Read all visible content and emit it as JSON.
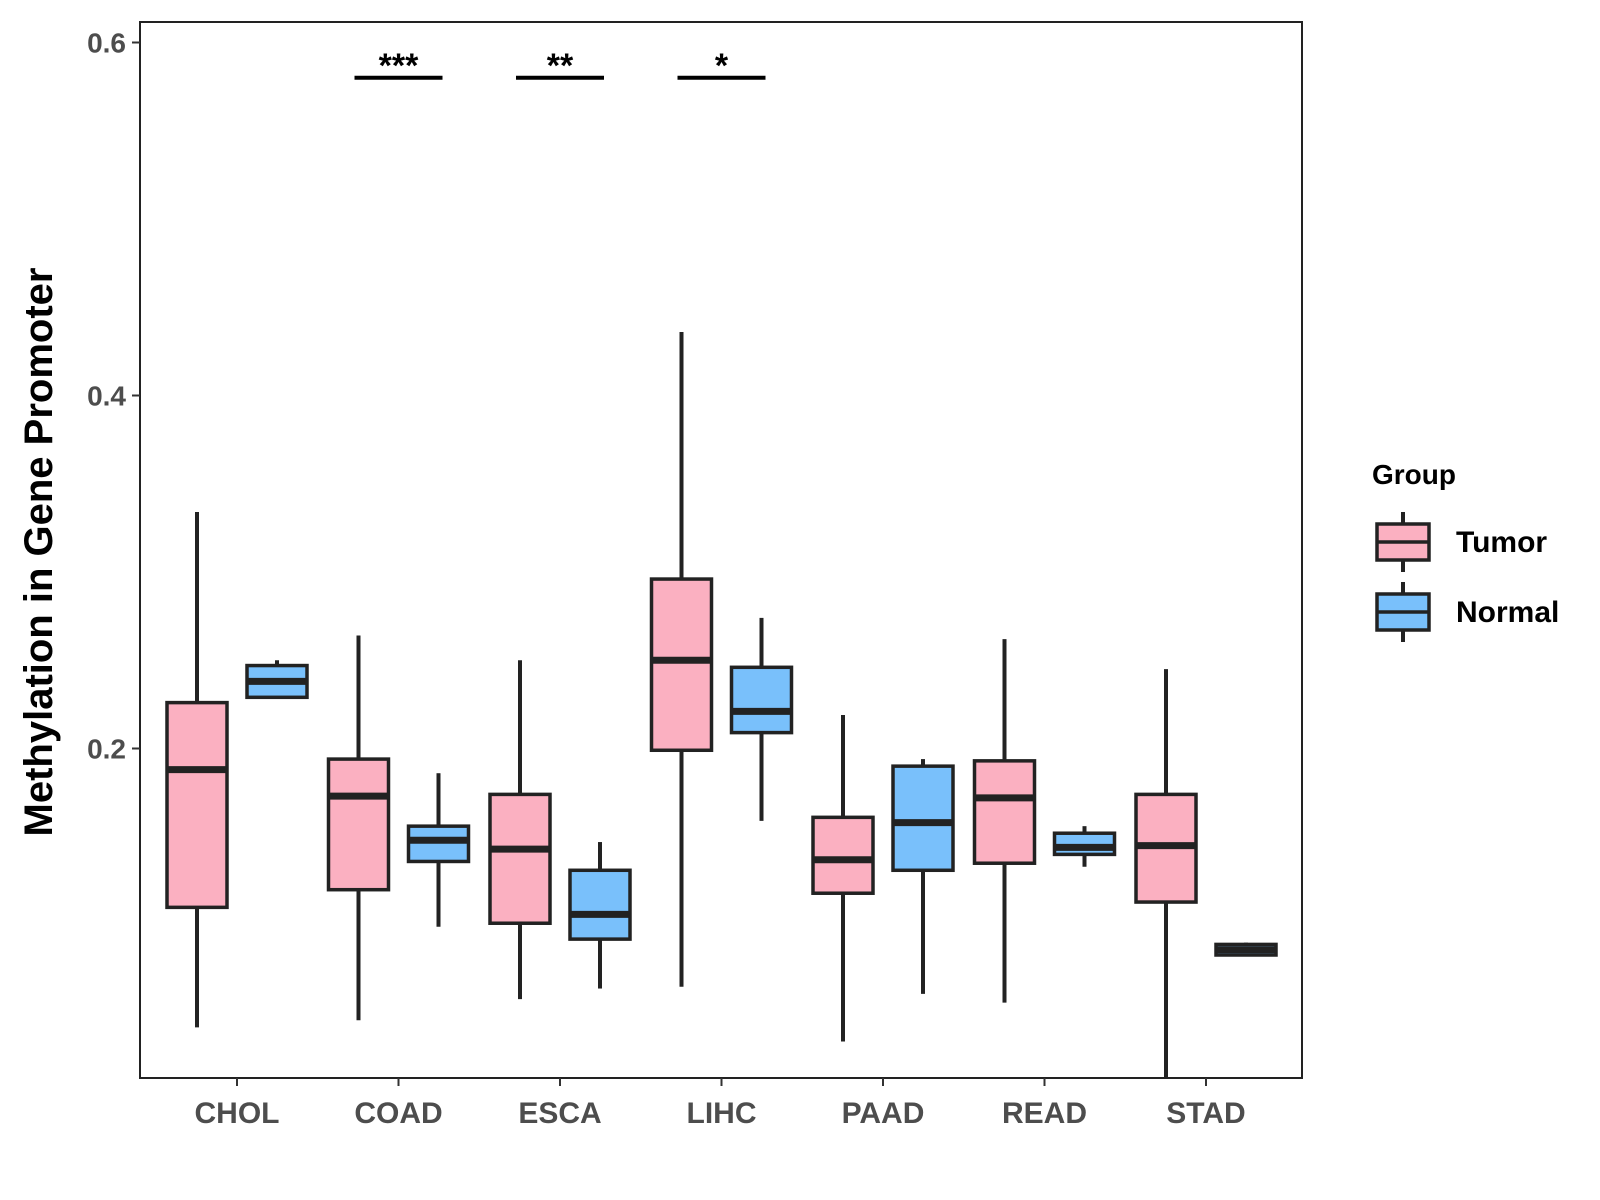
{
  "chart_data": {
    "type": "boxplot",
    "title": "",
    "xlabel": "",
    "ylabel": "Methylation in Gene Promoter",
    "ylim": [
      0.0,
      0.6
    ],
    "yticks": [
      "0.2",
      "0.4",
      "0.6"
    ],
    "categories": [
      "CHOL",
      "COAD",
      "ESCA",
      "LIHC",
      "PAAD",
      "READ",
      "STAD"
    ],
    "legend": {
      "title": "Group",
      "placement": "right",
      "items": [
        {
          "name": "Tumor",
          "color": "#FBB0C1"
        },
        {
          "name": "Normal",
          "color": "#79C0FB"
        }
      ]
    },
    "series": [
      {
        "name": "Tumor",
        "color": "#FBB0C1",
        "boxes": [
          {
            "category": "CHOL",
            "min": 0.042,
            "q1": 0.11,
            "median": 0.188,
            "q3": 0.226,
            "max": 0.334
          },
          {
            "category": "COAD",
            "min": 0.046,
            "q1": 0.12,
            "median": 0.173,
            "q3": 0.194,
            "max": 0.264
          },
          {
            "category": "ESCA",
            "min": 0.058,
            "q1": 0.101,
            "median": 0.143,
            "q3": 0.174,
            "max": 0.25
          },
          {
            "category": "LIHC",
            "min": 0.065,
            "q1": 0.199,
            "median": 0.25,
            "q3": 0.296,
            "max": 0.436
          },
          {
            "category": "PAAD",
            "min": 0.034,
            "q1": 0.118,
            "median": 0.137,
            "q3": 0.161,
            "max": 0.219
          },
          {
            "category": "READ",
            "min": 0.056,
            "q1": 0.135,
            "median": 0.172,
            "q3": 0.193,
            "max": 0.262
          },
          {
            "category": "STAD",
            "min": 0.013,
            "q1": 0.113,
            "median": 0.145,
            "q3": 0.174,
            "max": 0.245
          }
        ]
      },
      {
        "name": "Normal",
        "color": "#79C0FB",
        "boxes": [
          {
            "category": "CHOL",
            "min": 0.229,
            "q1": 0.229,
            "median": 0.238,
            "q3": 0.247,
            "max": 0.25
          },
          {
            "category": "COAD",
            "min": 0.099,
            "q1": 0.136,
            "median": 0.148,
            "q3": 0.156,
            "max": 0.186
          },
          {
            "category": "ESCA",
            "min": 0.064,
            "q1": 0.092,
            "median": 0.106,
            "q3": 0.131,
            "max": 0.147
          },
          {
            "category": "LIHC",
            "min": 0.159,
            "q1": 0.209,
            "median": 0.221,
            "q3": 0.246,
            "max": 0.274
          },
          {
            "category": "PAAD",
            "min": 0.061,
            "q1": 0.131,
            "median": 0.158,
            "q3": 0.19,
            "max": 0.194
          },
          {
            "category": "READ",
            "min": 0.133,
            "q1": 0.14,
            "median": 0.144,
            "q3": 0.152,
            "max": 0.156
          },
          {
            "category": "STAD",
            "min": 0.083,
            "q1": 0.083,
            "median": 0.086,
            "q3": 0.089,
            "max": 0.09
          }
        ]
      }
    ],
    "annotations": [
      {
        "category": "COAD",
        "label": "***",
        "y": 0.58
      },
      {
        "category": "ESCA",
        "label": "**",
        "y": 0.58
      },
      {
        "category": "LIHC",
        "label": "*",
        "y": 0.58
      }
    ]
  }
}
